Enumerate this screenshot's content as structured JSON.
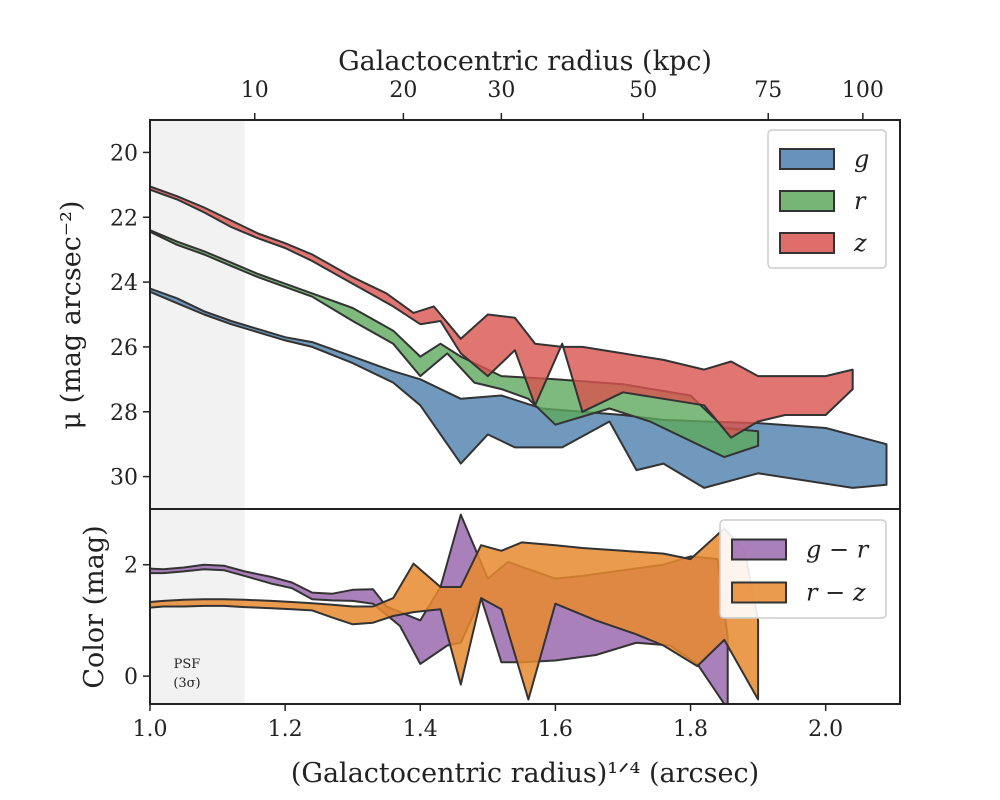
{
  "chart_data": [
    {
      "type": "area",
      "panel": "top",
      "xlabel_top": "Galactocentric radius (kpc)",
      "top_ticks": [
        {
          "label": "10",
          "x": 1.155
        },
        {
          "label": "20",
          "x": 1.375
        },
        {
          "label": "30",
          "x": 1.52
        },
        {
          "label": "50",
          "x": 1.73
        },
        {
          "label": "75",
          "x": 1.915
        },
        {
          "label": "100",
          "x": 2.055
        }
      ],
      "ylabel": "μ (mag arcsec⁻²)",
      "y_ticks": [
        "20",
        "22",
        "24",
        "26",
        "28",
        "30"
      ],
      "xlim": [
        1.0,
        2.11
      ],
      "ylim": [
        31.0,
        19.0
      ],
      "y_inverted": true,
      "psf_limit_x": 1.14,
      "legend": {
        "position": "top-right"
      },
      "series": [
        {
          "name": "g",
          "color": "#4e7fad",
          "upper": [
            [
              1.0,
              24.2
            ],
            [
              1.04,
              24.5
            ],
            [
              1.08,
              24.9
            ],
            [
              1.12,
              25.2
            ],
            [
              1.16,
              25.45
            ],
            [
              1.2,
              25.7
            ],
            [
              1.24,
              25.85
            ],
            [
              1.3,
              26.3
            ],
            [
              1.36,
              26.75
            ],
            [
              1.4,
              27.0
            ],
            [
              1.46,
              27.6
            ],
            [
              1.52,
              27.5
            ],
            [
              1.58,
              27.9
            ],
            [
              1.64,
              28.0
            ],
            [
              1.7,
              28.1
            ],
            [
              1.76,
              28.25
            ],
            [
              1.82,
              28.3
            ],
            [
              1.9,
              28.35
            ],
            [
              2.0,
              28.5
            ],
            [
              2.09,
              29.0
            ]
          ],
          "lower": [
            [
              1.0,
              24.3
            ],
            [
              1.04,
              24.65
            ],
            [
              1.08,
              25.0
            ],
            [
              1.12,
              25.3
            ],
            [
              1.16,
              25.55
            ],
            [
              1.2,
              25.8
            ],
            [
              1.24,
              26.0
            ],
            [
              1.3,
              26.5
            ],
            [
              1.36,
              27.1
            ],
            [
              1.4,
              27.8
            ],
            [
              1.46,
              29.6
            ],
            [
              1.5,
              28.7
            ],
            [
              1.54,
              29.1
            ],
            [
              1.61,
              29.1
            ],
            [
              1.68,
              28.3
            ],
            [
              1.72,
              29.8
            ],
            [
              1.76,
              29.6
            ],
            [
              1.82,
              30.35
            ],
            [
              1.9,
              29.9
            ],
            [
              2.04,
              30.35
            ],
            [
              2.09,
              30.25
            ]
          ]
        },
        {
          "name": "r",
          "color": "#5ea85e",
          "upper": [
            [
              1.0,
              22.4
            ],
            [
              1.04,
              22.75
            ],
            [
              1.08,
              23.05
            ],
            [
              1.12,
              23.4
            ],
            [
              1.16,
              23.75
            ],
            [
              1.2,
              24.05
            ],
            [
              1.24,
              24.35
            ],
            [
              1.3,
              24.8
            ],
            [
              1.36,
              25.5
            ],
            [
              1.4,
              26.3
            ],
            [
              1.43,
              25.9
            ],
            [
              1.46,
              26.3
            ],
            [
              1.52,
              26.9
            ],
            [
              1.6,
              27.0
            ],
            [
              1.7,
              27.15
            ],
            [
              1.8,
              27.5
            ],
            [
              1.85,
              28.5
            ],
            [
              1.9,
              28.6
            ]
          ],
          "lower": [
            [
              1.0,
              22.45
            ],
            [
              1.04,
              22.85
            ],
            [
              1.08,
              23.15
            ],
            [
              1.12,
              23.5
            ],
            [
              1.16,
              23.85
            ],
            [
              1.2,
              24.15
            ],
            [
              1.24,
              24.45
            ],
            [
              1.3,
              25.2
            ],
            [
              1.36,
              25.9
            ],
            [
              1.4,
              26.9
            ],
            [
              1.44,
              26.2
            ],
            [
              1.48,
              27.1
            ],
            [
              1.52,
              27.3
            ],
            [
              1.56,
              27.6
            ],
            [
              1.6,
              28.4
            ],
            [
              1.68,
              27.9
            ],
            [
              1.74,
              28.3
            ],
            [
              1.81,
              29.0
            ],
            [
              1.85,
              29.4
            ],
            [
              1.9,
              29.05
            ]
          ]
        },
        {
          "name": "z",
          "color": "#d9534f",
          "upper": [
            [
              1.0,
              21.05
            ],
            [
              1.04,
              21.35
            ],
            [
              1.08,
              21.7
            ],
            [
              1.12,
              22.1
            ],
            [
              1.16,
              22.5
            ],
            [
              1.2,
              22.8
            ],
            [
              1.24,
              23.15
            ],
            [
              1.3,
              23.85
            ],
            [
              1.35,
              24.35
            ],
            [
              1.39,
              24.95
            ],
            [
              1.42,
              24.75
            ],
            [
              1.46,
              25.75
            ],
            [
              1.5,
              25.0
            ],
            [
              1.54,
              25.1
            ],
            [
              1.57,
              25.9
            ],
            [
              1.61,
              26.0
            ],
            [
              1.64,
              26.0
            ],
            [
              1.7,
              26.2
            ],
            [
              1.76,
              26.4
            ],
            [
              1.82,
              26.7
            ],
            [
              1.86,
              26.45
            ],
            [
              1.9,
              26.9
            ],
            [
              2.0,
              26.9
            ],
            [
              2.04,
              26.7
            ]
          ],
          "lower": [
            [
              1.0,
              21.15
            ],
            [
              1.04,
              21.45
            ],
            [
              1.08,
              21.85
            ],
            [
              1.12,
              22.3
            ],
            [
              1.16,
              22.65
            ],
            [
              1.2,
              22.95
            ],
            [
              1.24,
              23.35
            ],
            [
              1.3,
              24.05
            ],
            [
              1.36,
              24.75
            ],
            [
              1.4,
              25.3
            ],
            [
              1.43,
              25.2
            ],
            [
              1.46,
              26.2
            ],
            [
              1.5,
              26.9
            ],
            [
              1.54,
              26.1
            ],
            [
              1.57,
              27.8
            ],
            [
              1.61,
              25.9
            ],
            [
              1.64,
              28.0
            ],
            [
              1.7,
              27.4
            ],
            [
              1.76,
              27.6
            ],
            [
              1.82,
              27.8
            ],
            [
              1.86,
              28.8
            ],
            [
              1.9,
              28.3
            ],
            [
              1.94,
              28.1
            ],
            [
              2.0,
              28.1
            ],
            [
              2.04,
              27.3
            ]
          ]
        }
      ]
    },
    {
      "type": "area",
      "panel": "bottom",
      "xlabel": "(Galactocentric radius)¹ᐟ⁴ (arcsec)",
      "x_ticks": [
        "1.0",
        "1.2",
        "1.4",
        "1.6",
        "1.8",
        "2.0"
      ],
      "ylabel": "Color (mag)",
      "y_ticks": [
        "0",
        "2"
      ],
      "xlim": [
        1.0,
        2.11
      ],
      "ylim": [
        -0.5,
        3.0
      ],
      "psf_note": [
        "PSF",
        "(3σ)"
      ],
      "legend": {
        "position": "top-right"
      },
      "series": [
        {
          "name": "g − r",
          "color": "#9b6aae",
          "upper": [
            [
              1.0,
              1.93
            ],
            [
              1.02,
              1.92
            ],
            [
              1.05,
              1.95
            ],
            [
              1.08,
              2.0
            ],
            [
              1.11,
              1.98
            ],
            [
              1.14,
              1.88
            ],
            [
              1.18,
              1.78
            ],
            [
              1.21,
              1.68
            ],
            [
              1.24,
              1.5
            ],
            [
              1.27,
              1.48
            ],
            [
              1.3,
              1.55
            ],
            [
              1.33,
              1.56
            ],
            [
              1.35,
              1.25
            ],
            [
              1.4,
              1.0
            ],
            [
              1.43,
              1.6
            ],
            [
              1.46,
              2.9
            ],
            [
              1.5,
              1.75
            ],
            [
              1.53,
              2.05
            ],
            [
              1.56,
              1.92
            ],
            [
              1.6,
              1.75
            ],
            [
              1.64,
              1.8
            ],
            [
              1.7,
              1.9
            ],
            [
              1.76,
              2.0
            ],
            [
              1.8,
              2.15
            ],
            [
              1.84,
              2.1
            ],
            [
              1.855,
              0.7
            ]
          ],
          "lower": [
            [
              1.0,
              1.85
            ],
            [
              1.02,
              1.85
            ],
            [
              1.05,
              1.88
            ],
            [
              1.08,
              1.92
            ],
            [
              1.11,
              1.9
            ],
            [
              1.14,
              1.8
            ],
            [
              1.18,
              1.66
            ],
            [
              1.21,
              1.58
            ],
            [
              1.24,
              1.38
            ],
            [
              1.27,
              1.36
            ],
            [
              1.3,
              1.35
            ],
            [
              1.33,
              1.3
            ],
            [
              1.37,
              0.9
            ],
            [
              1.4,
              0.22
            ],
            [
              1.44,
              0.55
            ],
            [
              1.46,
              0.6
            ],
            [
              1.49,
              1.4
            ],
            [
              1.52,
              0.25
            ],
            [
              1.55,
              0.25
            ],
            [
              1.6,
              0.28
            ],
            [
              1.66,
              0.38
            ],
            [
              1.72,
              0.6
            ],
            [
              1.77,
              0.55
            ],
            [
              1.81,
              0.22
            ],
            [
              1.85,
              -0.5
            ],
            [
              1.855,
              -0.5
            ]
          ]
        },
        {
          "name": "r − z",
          "color": "#e88a2e",
          "upper": [
            [
              1.0,
              1.33
            ],
            [
              1.02,
              1.35
            ],
            [
              1.05,
              1.37
            ],
            [
              1.08,
              1.38
            ],
            [
              1.11,
              1.38
            ],
            [
              1.14,
              1.37
            ],
            [
              1.18,
              1.35
            ],
            [
              1.21,
              1.33
            ],
            [
              1.24,
              1.31
            ],
            [
              1.27,
              1.28
            ],
            [
              1.3,
              1.25
            ],
            [
              1.33,
              1.25
            ],
            [
              1.36,
              1.4
            ],
            [
              1.39,
              2.02
            ],
            [
              1.43,
              1.6
            ],
            [
              1.46,
              1.6
            ],
            [
              1.49,
              2.35
            ],
            [
              1.52,
              2.25
            ],
            [
              1.55,
              2.4
            ],
            [
              1.6,
              2.35
            ],
            [
              1.64,
              2.3
            ],
            [
              1.7,
              2.25
            ],
            [
              1.76,
              2.2
            ],
            [
              1.8,
              2.1
            ],
            [
              1.85,
              2.65
            ],
            [
              1.88,
              2.25
            ],
            [
              1.9,
              1.0
            ]
          ],
          "lower": [
            [
              1.0,
              1.23
            ],
            [
              1.02,
              1.25
            ],
            [
              1.05,
              1.25
            ],
            [
              1.08,
              1.26
            ],
            [
              1.11,
              1.26
            ],
            [
              1.14,
              1.24
            ],
            [
              1.18,
              1.22
            ],
            [
              1.21,
              1.2
            ],
            [
              1.24,
              1.18
            ],
            [
              1.27,
              1.05
            ],
            [
              1.3,
              0.93
            ],
            [
              1.33,
              0.96
            ],
            [
              1.36,
              1.08
            ],
            [
              1.39,
              1.15
            ],
            [
              1.43,
              1.2
            ],
            [
              1.46,
              -0.15
            ],
            [
              1.49,
              1.4
            ],
            [
              1.52,
              1.2
            ],
            [
              1.56,
              -0.42
            ],
            [
              1.6,
              1.3
            ],
            [
              1.66,
              1.0
            ],
            [
              1.72,
              0.75
            ],
            [
              1.76,
              0.55
            ],
            [
              1.81,
              0.18
            ],
            [
              1.85,
              0.65
            ],
            [
              1.9,
              -0.42
            ]
          ]
        }
      ]
    }
  ]
}
